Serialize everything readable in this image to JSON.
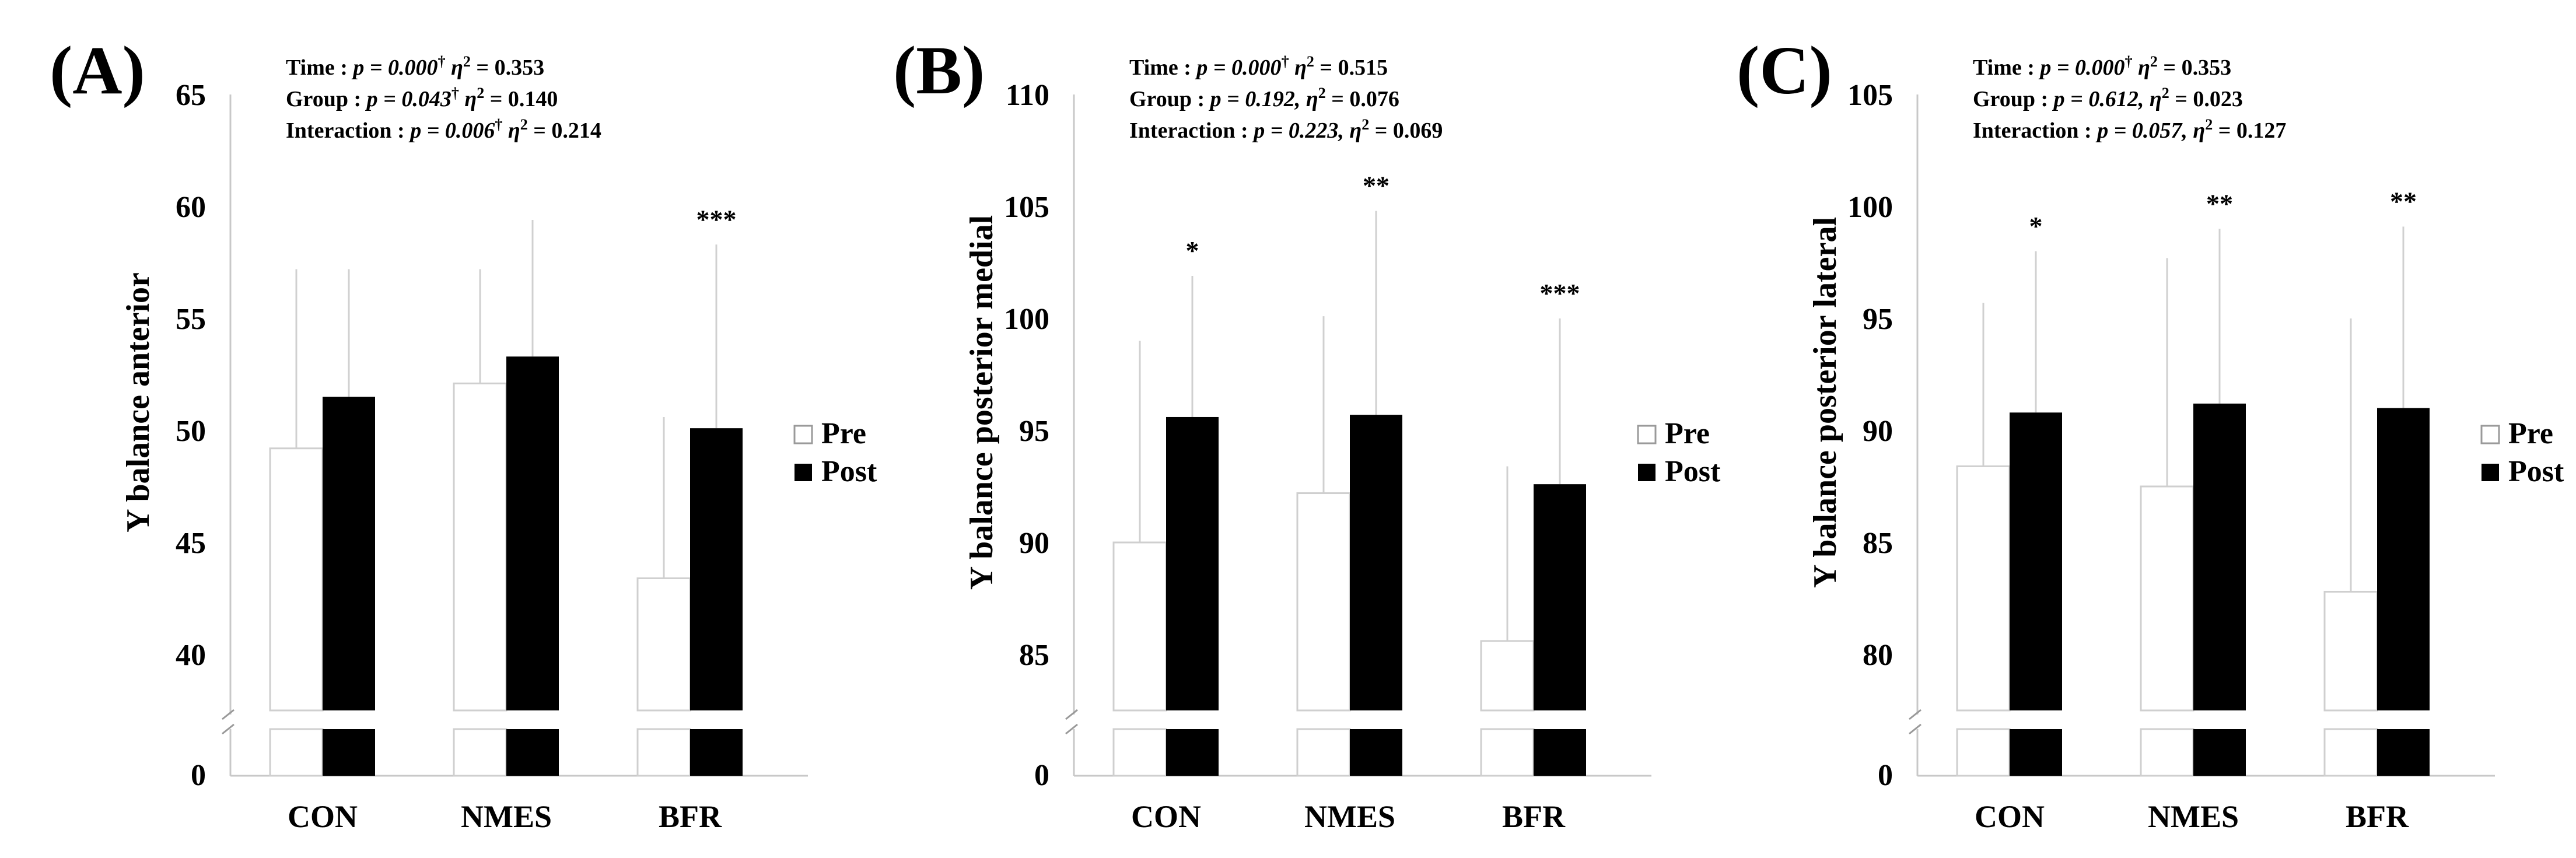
{
  "chart_data": [
    {
      "type": "bar",
      "panel_label": "(A)",
      "ylabel": "Y balance anterior",
      "categories": [
        "CON",
        "NMES",
        "BFR"
      ],
      "series": [
        {
          "name": "Pre",
          "values": [
            49.2,
            52.1,
            43.4
          ],
          "sd_upper": [
            57.2,
            57.2,
            50.6
          ]
        },
        {
          "name": "Post",
          "values": [
            51.5,
            53.3,
            50.1
          ],
          "sd_upper": [
            57.2,
            59.4,
            58.3
          ]
        }
      ],
      "significance": [
        "",
        "",
        "***"
      ],
      "ylim": [
        37.5,
        65
      ],
      "yticks": [
        40,
        45,
        50,
        55,
        60,
        65
      ],
      "axis_break": true,
      "zero_tick": "0",
      "stats": {
        "time": {
          "label": "Time : ",
          "p": "p = 0.000",
          "dagger": "†",
          "eta": "η",
          "sup2": "2",
          "eta_val": " = 0.353"
        },
        "group": {
          "label": "Group : ",
          "p": "p = 0.043",
          "dagger": "†",
          "eta": "η",
          "sup2": "2",
          "eta_val": " = 0.140"
        },
        "interaction": {
          "label": "Interaction : ",
          "p": "p = 0.006",
          "dagger": "†",
          "eta": "η",
          "sup2": "2",
          "eta_val": " = 0.214"
        }
      },
      "legend": {
        "pre": "Pre",
        "post": "Post"
      }
    },
    {
      "type": "bar",
      "panel_label": "(B)",
      "ylabel": "Y balance posterior medial",
      "categories": [
        "CON",
        "NMES",
        "BFR"
      ],
      "series": [
        {
          "name": "Pre",
          "values": [
            90.0,
            92.2,
            85.6
          ],
          "sd_upper": [
            99.0,
            100.1,
            93.4
          ]
        },
        {
          "name": "Post",
          "values": [
            95.6,
            95.7,
            92.6
          ],
          "sd_upper": [
            101.9,
            104.8,
            100.0
          ]
        }
      ],
      "significance": [
        "*",
        "**",
        "***"
      ],
      "ylim": [
        82.5,
        110
      ],
      "yticks": [
        85,
        90,
        95,
        100,
        105,
        110
      ],
      "axis_break": true,
      "zero_tick": "0",
      "stats": {
        "time": {
          "label": "Time : ",
          "p": "p = 0.000",
          "dagger": "†",
          "eta": "η",
          "sup2": "2",
          "eta_val": " = 0.515"
        },
        "group": {
          "label": "Group : ",
          "p": "p = 0.192,",
          "dagger": "",
          "eta": "η",
          "sup2": "2",
          "eta_val": " = 0.076"
        },
        "interaction": {
          "label": "Interaction : ",
          "p": "p = 0.223,",
          "dagger": "",
          "eta": "η",
          "sup2": "2",
          "eta_val": " = 0.069"
        }
      },
      "legend": {
        "pre": "Pre",
        "post": "Post"
      }
    },
    {
      "type": "bar",
      "panel_label": "(C)",
      "ylabel": "Y balance posterior lateral",
      "categories": [
        "CON",
        "NMES",
        "BFR"
      ],
      "series": [
        {
          "name": "Pre",
          "values": [
            88.4,
            87.5,
            82.8
          ],
          "sd_upper": [
            95.7,
            97.7,
            95.0
          ]
        },
        {
          "name": "Post",
          "values": [
            90.8,
            91.2,
            91.0
          ],
          "sd_upper": [
            98.0,
            99.0,
            99.1
          ]
        }
      ],
      "significance": [
        "*",
        "**",
        "**"
      ],
      "ylim": [
        77.5,
        105
      ],
      "yticks": [
        80,
        85,
        90,
        95,
        100,
        105
      ],
      "axis_break": true,
      "zero_tick": "0",
      "stats": {
        "time": {
          "label": "Time : ",
          "p": "p = 0.000",
          "dagger": "†",
          "eta": "η",
          "sup2": "2",
          "eta_val": " = 0.353"
        },
        "group": {
          "label": "Group : ",
          "p": "p = 0.612,",
          "dagger": "",
          "eta": "η",
          "sup2": "2",
          "eta_val": " = 0.023"
        },
        "interaction": {
          "label": "Interaction : ",
          "p": "p = 0.057,",
          "dagger": "",
          "eta": "η",
          "sup2": "2",
          "eta_val": " = 0.127"
        }
      },
      "legend": {
        "pre": "Pre",
        "post": "Post"
      }
    }
  ]
}
